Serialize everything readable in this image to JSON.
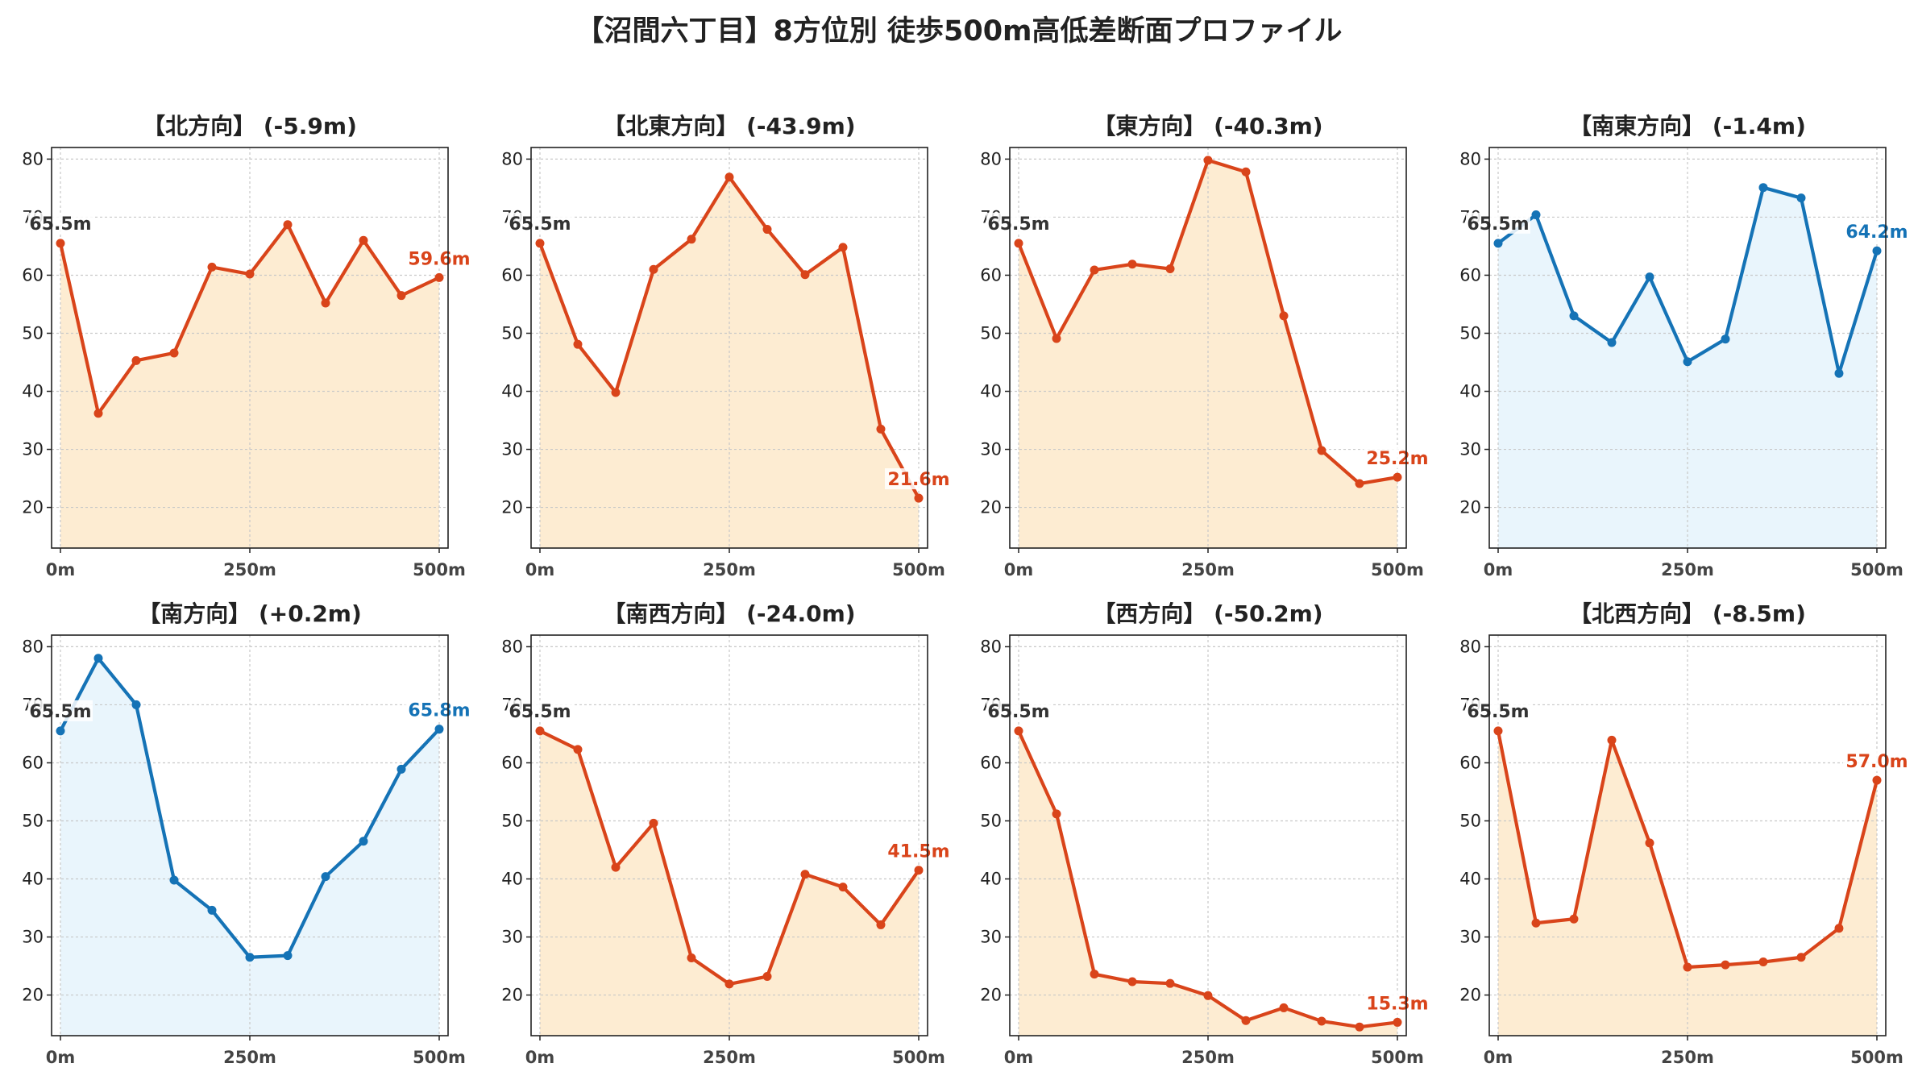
{
  "title": "【沼間六丁目】8方位別 徒歩500m高低差断面プロファイル",
  "colors": {
    "down_line": "#d9441a",
    "down_fill": "#fdecd2",
    "up_line": "#1573b6",
    "up_fill": "#e9f5fc",
    "start_label": "#333333",
    "grid": "#c8c8c8"
  },
  "chart_data": [
    {
      "type": "line",
      "title": "【北方向】 (-5.9m)",
      "trend": "down",
      "x": [
        0,
        50,
        100,
        150,
        200,
        250,
        300,
        350,
        400,
        450,
        500
      ],
      "y": [
        65.5,
        36.2,
        45.3,
        46.6,
        61.4,
        60.2,
        68.7,
        55.2,
        66.0,
        56.5,
        59.6
      ],
      "start_label": "65.5m",
      "end_label": "59.6m",
      "xticks": [
        "0m",
        "250m",
        "500m"
      ],
      "yticks": [
        20,
        30,
        40,
        50,
        60,
        70,
        80
      ],
      "ylim": [
        13,
        82
      ],
      "grid": true
    },
    {
      "type": "line",
      "title": "【北東方向】 (-43.9m)",
      "trend": "down",
      "x": [
        0,
        50,
        100,
        150,
        200,
        250,
        300,
        350,
        400,
        450,
        500
      ],
      "y": [
        65.5,
        48.1,
        39.8,
        61.0,
        66.2,
        76.9,
        67.9,
        60.1,
        64.8,
        33.5,
        21.6
      ],
      "start_label": "65.5m",
      "end_label": "21.6m",
      "xticks": [
        "0m",
        "250m",
        "500m"
      ],
      "yticks": [
        20,
        30,
        40,
        50,
        60,
        70,
        80
      ],
      "ylim": [
        13,
        82
      ],
      "grid": true
    },
    {
      "type": "line",
      "title": "【東方向】 (-40.3m)",
      "trend": "down",
      "x": [
        0,
        50,
        100,
        150,
        200,
        250,
        300,
        350,
        400,
        450,
        500
      ],
      "y": [
        65.5,
        49.1,
        60.9,
        61.9,
        61.1,
        79.8,
        77.8,
        53.0,
        29.8,
        24.1,
        25.2
      ],
      "start_label": "65.5m",
      "end_label": "25.2m",
      "xticks": [
        "0m",
        "250m",
        "500m"
      ],
      "yticks": [
        20,
        30,
        40,
        50,
        60,
        70,
        80
      ],
      "ylim": [
        13,
        82
      ],
      "grid": true
    },
    {
      "type": "line",
      "title": "【南東方向】 (-1.4m)",
      "trend": "up",
      "x": [
        0,
        50,
        100,
        150,
        200,
        250,
        300,
        350,
        400,
        450,
        500
      ],
      "y": [
        65.5,
        70.4,
        53.0,
        48.4,
        59.7,
        45.1,
        49.0,
        75.1,
        73.3,
        43.1,
        64.2
      ],
      "start_label": "65.5m",
      "end_label": "64.2m",
      "xticks": [
        "0m",
        "250m",
        "500m"
      ],
      "yticks": [
        20,
        30,
        40,
        50,
        60,
        70,
        80
      ],
      "ylim": [
        13,
        82
      ],
      "grid": true
    },
    {
      "type": "line",
      "title": "【南方向】 (+0.2m)",
      "trend": "up",
      "x": [
        0,
        50,
        100,
        150,
        200,
        250,
        300,
        350,
        400,
        450,
        500
      ],
      "y": [
        65.5,
        78.0,
        70.0,
        39.8,
        34.6,
        26.5,
        26.8,
        40.4,
        46.5,
        58.9,
        65.8
      ],
      "start_label": "65.5m",
      "end_label": "65.8m",
      "xticks": [
        "0m",
        "250m",
        "500m"
      ],
      "yticks": [
        20,
        30,
        40,
        50,
        60,
        70,
        80
      ],
      "ylim": [
        13,
        82
      ],
      "grid": true
    },
    {
      "type": "line",
      "title": "【南西方向】 (-24.0m)",
      "trend": "down",
      "x": [
        0,
        50,
        100,
        150,
        200,
        250,
        300,
        350,
        400,
        450,
        500
      ],
      "y": [
        65.5,
        62.3,
        42.0,
        49.6,
        26.4,
        21.9,
        23.2,
        40.8,
        38.6,
        32.1,
        41.5
      ],
      "start_label": "65.5m",
      "end_label": "41.5m",
      "xticks": [
        "0m",
        "250m",
        "500m"
      ],
      "yticks": [
        20,
        30,
        40,
        50,
        60,
        70,
        80
      ],
      "ylim": [
        13,
        82
      ],
      "grid": true
    },
    {
      "type": "line",
      "title": "【西方向】 (-50.2m)",
      "trend": "down",
      "x": [
        0,
        50,
        100,
        150,
        200,
        250,
        300,
        350,
        400,
        450,
        500
      ],
      "y": [
        65.5,
        51.2,
        23.6,
        22.3,
        22.0,
        19.9,
        15.6,
        17.8,
        15.5,
        14.5,
        15.3
      ],
      "start_label": "65.5m",
      "end_label": "15.3m",
      "xticks": [
        "0m",
        "250m",
        "500m"
      ],
      "yticks": [
        20,
        30,
        40,
        50,
        60,
        70,
        80
      ],
      "ylim": [
        13,
        82
      ],
      "grid": true
    },
    {
      "type": "line",
      "title": "【北西方向】 (-8.5m)",
      "trend": "down",
      "x": [
        0,
        50,
        100,
        150,
        200,
        250,
        300,
        350,
        400,
        450,
        500
      ],
      "y": [
        65.5,
        32.4,
        33.1,
        63.9,
        46.2,
        24.8,
        25.2,
        25.7,
        26.5,
        31.5,
        57.0
      ],
      "start_label": "65.5m",
      "end_label": "57.0m",
      "xticks": [
        "0m",
        "250m",
        "500m"
      ],
      "yticks": [
        20,
        30,
        40,
        50,
        60,
        70,
        80
      ],
      "ylim": [
        13,
        82
      ],
      "grid": true
    }
  ]
}
